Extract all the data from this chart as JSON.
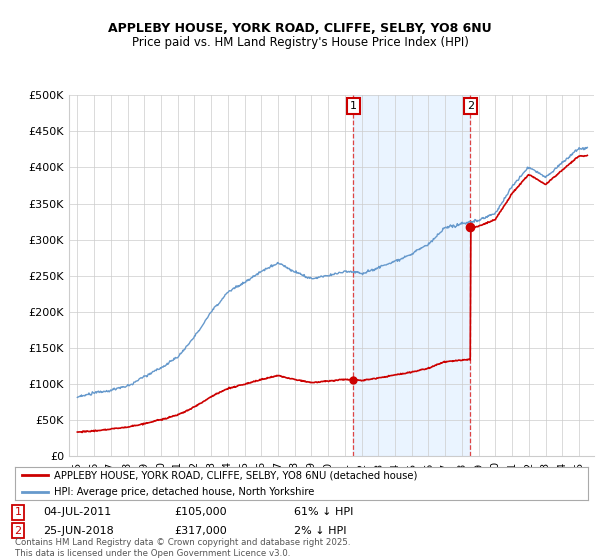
{
  "title1": "APPLEBY HOUSE, YORK ROAD, CLIFFE, SELBY, YO8 6NU",
  "title2": "Price paid vs. HM Land Registry's House Price Index (HPI)",
  "legend_label_red": "APPLEBY HOUSE, YORK ROAD, CLIFFE, SELBY, YO8 6NU (detached house)",
  "legend_label_blue": "HPI: Average price, detached house, North Yorkshire",
  "transaction1_label": "1",
  "transaction1_date": "04-JUL-2011",
  "transaction1_price": "£105,000",
  "transaction1_hpi": "61% ↓ HPI",
  "transaction2_label": "2",
  "transaction2_date": "25-JUN-2018",
  "transaction2_price": "£317,000",
  "transaction2_hpi": "2% ↓ HPI",
  "footnote": "Contains HM Land Registry data © Crown copyright and database right 2025.\nThis data is licensed under the Open Government Licence v3.0.",
  "ylim": [
    0,
    500000
  ],
  "yticks": [
    0,
    50000,
    100000,
    150000,
    200000,
    250000,
    300000,
    350000,
    400000,
    450000,
    500000
  ],
  "ytick_labels": [
    "£0",
    "£50K",
    "£100K",
    "£150K",
    "£200K",
    "£250K",
    "£300K",
    "£350K",
    "£400K",
    "£450K",
    "£500K"
  ],
  "red_color": "#cc0000",
  "blue_color": "#6699cc",
  "blue_fill_color": "#ddeeff",
  "vline_color": "#dd4444",
  "background_color": "#ffffff",
  "plot_bg_color": "#ffffff",
  "grid_color": "#cccccc",
  "transaction1_x": 2011.5,
  "transaction2_x": 2018.5,
  "hpi_years": [
    1995,
    1996,
    1997,
    1998,
    1999,
    2000,
    2001,
    2002,
    2003,
    2004,
    2005,
    2006,
    2007,
    2008,
    2009,
    2010,
    2011,
    2012,
    2013,
    2014,
    2015,
    2016,
    2017,
    2018,
    2019,
    2020,
    2021,
    2022,
    2023,
    2024,
    2025
  ],
  "hpi_values": [
    82000,
    86000,
    92000,
    98000,
    110000,
    123000,
    138000,
    165000,
    200000,
    228000,
    242000,
    258000,
    272000,
    258000,
    248000,
    252000,
    258000,
    254000,
    262000,
    272000,
    282000,
    295000,
    318000,
    323000,
    328000,
    338000,
    375000,
    402000,
    388000,
    408000,
    428000
  ]
}
